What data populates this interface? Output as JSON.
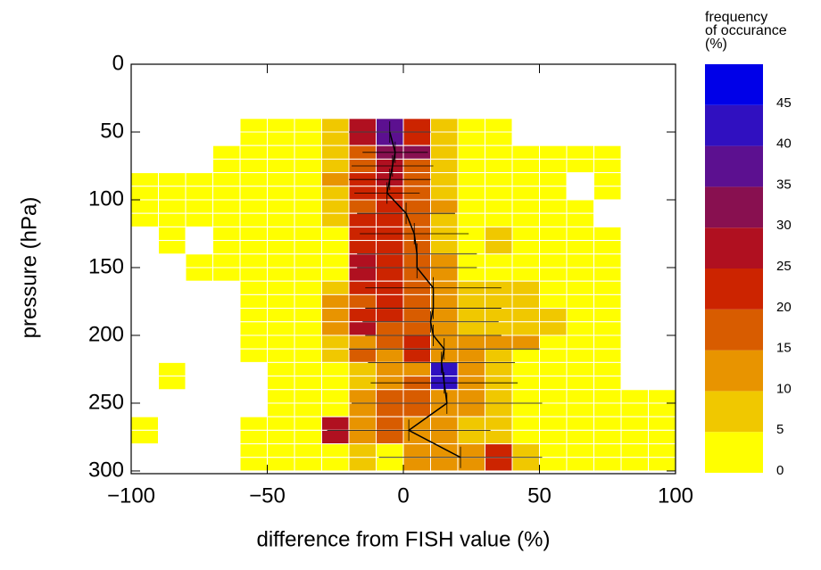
{
  "chart_data": {
    "type": "heatmap",
    "xlabel": "difference from FISH value (%)",
    "ylabel": "pressure (hPa)",
    "xlim": [
      -100,
      100
    ],
    "xticks": [
      {
        "value": -100,
        "label": "−100"
      },
      {
        "value": -50,
        "label": "−50"
      },
      0,
      50,
      100
    ],
    "ylim": [
      0,
      302
    ],
    "yticks": [
      0,
      50,
      100,
      150,
      200,
      250,
      300
    ],
    "y_reversed": true,
    "x_bins": [
      -100,
      -90,
      -80,
      -70,
      -60,
      -50,
      -40,
      -30,
      -20,
      -10,
      0,
      10,
      20,
      30,
      40,
      50,
      60,
      70,
      80,
      90,
      100
    ],
    "y_bins": [
      40,
      50,
      60,
      70,
      80,
      90,
      100,
      110,
      120,
      130,
      140,
      150,
      160,
      170,
      180,
      190,
      200,
      210,
      220,
      230,
      240,
      250,
      260,
      270,
      280,
      290,
      300
    ],
    "values": [
      [
        null,
        null,
        null,
        null,
        2,
        2,
        2,
        7,
        27,
        37,
        22,
        7,
        2,
        2,
        null,
        null,
        null,
        null,
        null,
        null
      ],
      [
        null,
        null,
        null,
        null,
        2,
        2,
        2,
        7,
        27,
        37,
        22,
        7,
        2,
        2,
        null,
        null,
        null,
        null,
        null,
        null
      ],
      [
        null,
        null,
        null,
        2,
        2,
        2,
        2,
        7,
        17,
        32,
        32,
        7,
        2,
        2,
        2,
        2,
        2,
        2,
        null,
        null
      ],
      [
        null,
        null,
        null,
        2,
        2,
        2,
        2,
        7,
        17,
        27,
        17,
        7,
        2,
        2,
        2,
        2,
        2,
        2,
        null,
        null
      ],
      [
        2,
        2,
        2,
        2,
        2,
        2,
        2,
        12,
        22,
        27,
        17,
        7,
        2,
        2,
        2,
        2,
        null,
        2,
        null,
        null
      ],
      [
        2,
        2,
        2,
        2,
        2,
        2,
        2,
        7,
        22,
        22,
        17,
        7,
        2,
        2,
        2,
        2,
        null,
        2,
        null,
        null
      ],
      [
        2,
        2,
        2,
        2,
        2,
        2,
        2,
        7,
        17,
        22,
        17,
        12,
        2,
        2,
        2,
        2,
        2,
        null,
        null,
        null
      ],
      [
        2,
        2,
        2,
        2,
        2,
        2,
        2,
        7,
        22,
        22,
        17,
        7,
        2,
        2,
        2,
        2,
        2,
        null,
        null,
        null
      ],
      [
        null,
        2,
        null,
        2,
        2,
        2,
        2,
        2,
        22,
        22,
        17,
        7,
        2,
        7,
        2,
        2,
        2,
        2,
        null,
        null
      ],
      [
        null,
        2,
        null,
        2,
        2,
        2,
        2,
        2,
        22,
        22,
        17,
        7,
        2,
        7,
        2,
        2,
        2,
        2,
        null,
        null
      ],
      [
        null,
        null,
        2,
        2,
        2,
        2,
        2,
        2,
        27,
        22,
        17,
        12,
        2,
        2,
        2,
        2,
        2,
        2,
        null,
        null
      ],
      [
        null,
        null,
        2,
        2,
        2,
        2,
        2,
        2,
        27,
        22,
        17,
        12,
        2,
        2,
        2,
        2,
        2,
        2,
        null,
        null
      ],
      [
        null,
        null,
        null,
        null,
        2,
        2,
        2,
        7,
        22,
        22,
        17,
        12,
        7,
        7,
        7,
        2,
        2,
        2,
        null,
        null
      ],
      [
        null,
        null,
        null,
        null,
        2,
        2,
        2,
        12,
        17,
        22,
        17,
        12,
        7,
        7,
        7,
        2,
        2,
        2,
        null,
        null
      ],
      [
        null,
        null,
        null,
        null,
        2,
        2,
        2,
        12,
        22,
        22,
        17,
        12,
        7,
        7,
        7,
        7,
        2,
        2,
        null,
        null
      ],
      [
        null,
        null,
        null,
        null,
        2,
        2,
        2,
        12,
        27,
        17,
        17,
        12,
        7,
        7,
        7,
        7,
        2,
        2,
        null,
        null
      ],
      [
        null,
        null,
        null,
        null,
        2,
        2,
        2,
        7,
        12,
        17,
        22,
        12,
        12,
        12,
        12,
        2,
        2,
        2,
        null,
        null
      ],
      [
        null,
        null,
        null,
        null,
        2,
        2,
        2,
        7,
        17,
        12,
        22,
        12,
        12,
        7,
        2,
        2,
        2,
        2,
        null,
        null
      ],
      [
        null,
        2,
        null,
        null,
        null,
        2,
        2,
        2,
        7,
        12,
        12,
        42,
        12,
        7,
        2,
        2,
        2,
        2,
        null,
        null
      ],
      [
        null,
        2,
        null,
        null,
        null,
        2,
        2,
        2,
        7,
        12,
        17,
        42,
        12,
        7,
        2,
        2,
        2,
        2,
        null,
        null
      ],
      [
        null,
        null,
        null,
        null,
        null,
        2,
        2,
        2,
        12,
        17,
        17,
        12,
        12,
        7,
        2,
        2,
        2,
        2,
        2,
        2
      ],
      [
        null,
        null,
        null,
        null,
        null,
        2,
        2,
        2,
        12,
        17,
        17,
        12,
        12,
        7,
        2,
        2,
        2,
        2,
        2,
        2
      ],
      [
        2,
        null,
        null,
        null,
        2,
        2,
        2,
        27,
        12,
        17,
        12,
        12,
        7,
        7,
        2,
        2,
        2,
        2,
        2,
        2
      ],
      [
        2,
        null,
        null,
        null,
        2,
        2,
        2,
        27,
        12,
        17,
        12,
        12,
        7,
        7,
        2,
        2,
        2,
        2,
        2,
        2
      ],
      [
        null,
        null,
        null,
        null,
        2,
        2,
        2,
        2,
        7,
        2,
        12,
        12,
        12,
        22,
        7,
        2,
        2,
        2,
        2,
        2
      ],
      [
        null,
        null,
        null,
        null,
        2,
        2,
        2,
        2,
        7,
        2,
        12,
        12,
        12,
        22,
        7,
        2,
        2,
        2,
        2,
        2
      ]
    ],
    "colorbar": {
      "title": [
        "frequency",
        "of occurance",
        "(%)"
      ],
      "lim": [
        0,
        50
      ],
      "levels": [
        0,
        5,
        10,
        15,
        20,
        25,
        30,
        35,
        40,
        45,
        50
      ],
      "ticks": [
        0,
        5,
        10,
        15,
        20,
        25,
        30,
        35,
        40,
        45
      ],
      "colors": [
        "#ffff00",
        "#f0c800",
        "#e89400",
        "#d85c00",
        "#cc2400",
        "#b01020",
        "#881050",
        "#5c1090",
        "#3010c0",
        "#0000e8"
      ]
    },
    "profile": {
      "color": "#000000",
      "y": [
        50,
        65,
        75,
        85,
        95,
        110,
        125,
        140,
        150,
        165,
        180,
        190,
        200,
        210,
        220,
        235,
        250,
        270,
        290
      ],
      "x": [
        -5,
        -3,
        -4,
        -5,
        -6,
        1,
        4,
        5,
        5,
        11,
        11,
        10,
        11,
        15,
        14,
        15,
        16,
        2,
        21
      ],
      "xerr": [
        15,
        12,
        15,
        15,
        12,
        18,
        20,
        22,
        22,
        25,
        25,
        25,
        25,
        35,
        27,
        27,
        35,
        30,
        30
      ]
    }
  }
}
